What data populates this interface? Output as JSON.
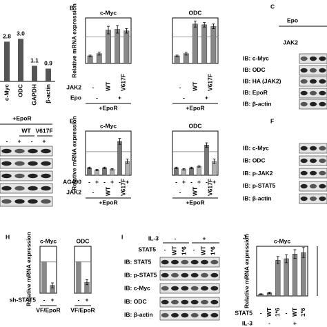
{
  "panels": {
    "a": {
      "bars": {
        "categories": [
          "c-Myc",
          "ODC",
          "GAPDH",
          "β-actin"
        ],
        "values": [
          2.8,
          3.0,
          1.1,
          0.9
        ],
        "value_labels": [
          "2.8",
          "3.0",
          "1.1",
          "0.9"
        ],
        "ylim": [
          0,
          3.5
        ],
        "color": "#555555"
      },
      "blot": {
        "group": "+EpoR",
        "jak2": [
          "WT",
          "V617F"
        ],
        "epo": [
          "-",
          "+",
          "-",
          "+"
        ]
      }
    },
    "b": {
      "letter": "B",
      "y_label": "Relative mRNA expression",
      "ylim": [
        0,
        6
      ],
      "hline": 3.5,
      "colors": [
        "#888888"
      ],
      "charts": [
        {
          "title": "c-Myc",
          "values": [
            1,
            1.3,
            4.4,
            4.5,
            4.3
          ],
          "errors": [
            0.1,
            0.2,
            0.5,
            0.5,
            0.3
          ]
        },
        {
          "title": "ODC",
          "values": [
            1,
            1.3,
            5.2,
            5.1,
            4.9
          ],
          "errors": [
            0.1,
            0.2,
            0.4,
            0.3,
            0.3
          ]
        }
      ],
      "rows": [
        {
          "label": "JAK2",
          "ticks": [
            "-",
            "WT",
            "V617F"
          ]
        },
        {
          "label": "Epo",
          "ticks": [
            "-",
            "+"
          ]
        }
      ],
      "group": "+EpoR"
    },
    "c": {
      "letter": "C",
      "epo": "Epo",
      "jak2": "JAK2",
      "ib": [
        "IB: c-Myc",
        "IB: ODC",
        "IB: HA (JAK2)",
        "IB: EpoR",
        "IB: β-actin"
      ]
    },
    "e": {
      "letter": "E",
      "y_label": "Relative mRNA expression",
      "ylim": [
        0,
        6
      ],
      "hline": 3.2,
      "colors": [
        "#777777",
        "#b0b0b0"
      ],
      "charts": [
        {
          "title": "c-Myc",
          "values": [
            1,
            0.7,
            1,
            0.8,
            4.6,
            1.9
          ],
          "errors": [
            0.1,
            0.1,
            0.1,
            0.1,
            0.4,
            0.3
          ]
        },
        {
          "title": "ODC",
          "values": [
            1,
            0.8,
            1,
            1.2,
            4.1,
            1.9
          ],
          "errors": [
            0.1,
            0.1,
            0.1,
            0.1,
            0.3,
            0.3
          ]
        }
      ],
      "rows": [
        {
          "label": "AG490",
          "ticks": [
            "-",
            "+",
            "-",
            "+",
            "-",
            "+"
          ]
        },
        {
          "label": "JAK2",
          "ticks": [
            "-",
            "WT",
            "V617F"
          ]
        }
      ],
      "group": "+EpoR"
    },
    "f": {
      "letter": "F",
      "ib": [
        "IB: c-Myc",
        "IB: ODC",
        "IB: p-JAK2",
        "IB: p-STAT5",
        "IB: β-actin"
      ]
    },
    "h": {
      "letter": "H",
      "y_label": "Relative mRNA expression",
      "ylim": [
        0,
        1.5
      ],
      "hline": 1,
      "colors": [
        "#888888"
      ],
      "charts": [
        {
          "title": "c-Myc",
          "values": [
            1,
            0.25
          ],
          "errors": [
            null,
            0.08
          ]
        },
        {
          "title": "ODC",
          "values": [
            1,
            0.35
          ],
          "errors": [
            null,
            0.08
          ]
        }
      ],
      "rows": [
        {
          "label": "sh-STAT5",
          "ticks": [
            "-",
            "+"
          ]
        }
      ],
      "group": "VF/EpoR"
    },
    "i": {
      "letter": "I",
      "il3": {
        "label": "IL-3",
        "ticks": [
          "-",
          "+"
        ]
      },
      "stat5": {
        "label": "STAT5",
        "ticks": [
          "-",
          "WT",
          "1*6",
          "-",
          "WT",
          "1*6"
        ]
      },
      "ib": [
        "IB: STAT5",
        "IB: p-STAT5",
        "IB: c-Myc",
        "IB: ODC",
        "IB: β-actin"
      ]
    },
    "j": {
      "letter": "J",
      "y_label": "Relative mRNA expression",
      "ylim": [
        0,
        16
      ],
      "colors": [
        "#888888"
      ],
      "charts": [
        {
          "title": "c-Myc",
          "values": [
            0.6,
            1,
            11.5,
            12,
            13.5,
            14
          ],
          "errors": [
            0.1,
            0.2,
            1.2,
            1.3,
            1.4,
            1.6
          ]
        }
      ],
      "rows": [
        {
          "label": "STAT5",
          "ticks": [
            "-",
            "WT",
            "1*6",
            "-",
            "WT",
            "1*6"
          ]
        },
        {
          "label": "IL-3",
          "ticks": [
            "-",
            "+"
          ]
        }
      ]
    }
  }
}
